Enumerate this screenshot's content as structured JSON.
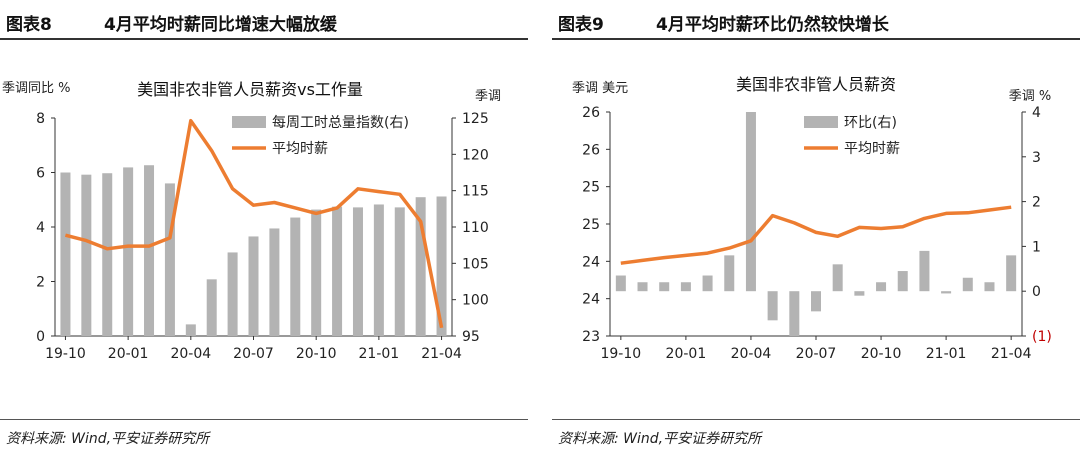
{
  "panels": [
    {
      "fig_no": "图表8",
      "fig_title": "4月平均时薪同比增速大幅放缓",
      "source": "资料来源: Wind,平安证券研究所"
    },
    {
      "fig_no": "图表9",
      "fig_title": "4月平均时薪环比仍然较快增长",
      "source": "资料来源: Wind,平安证券研究所"
    }
  ],
  "colors": {
    "bar": "#b3b3b3",
    "line": "#ed7d31",
    "negative_tick": "#c00000"
  },
  "chart_data": [
    {
      "type": "bar+line",
      "title": "美国非农非管人员薪资vs工作量",
      "ylabel_left": "季调同比 %",
      "ylabel_right": "季调",
      "x": [
        "2019-10",
        "2019-11",
        "2019-12",
        "2020-01",
        "2020-02",
        "2020-03",
        "2020-04",
        "2020-05",
        "2020-06",
        "2020-07",
        "2020-08",
        "2020-09",
        "2020-10",
        "2020-11",
        "2020-12",
        "2021-01",
        "2021-02",
        "2021-03",
        "2021-04"
      ],
      "xticks": [
        "19-10",
        "20-01",
        "20-04",
        "20-07",
        "20-10",
        "21-01",
        "21-04"
      ],
      "ylim_left": [
        0,
        8
      ],
      "yticks_left": [
        "0",
        "2",
        "4",
        "6",
        "8"
      ],
      "ylim_right": [
        95,
        125
      ],
      "yticks_right": [
        "95",
        "100",
        "105",
        "110",
        "115",
        "120",
        "125"
      ],
      "legend_position": "top-right",
      "series": [
        {
          "name": "每周工时总量指数(右)",
          "type": "bar",
          "axis": "right",
          "values": [
            117.5,
            117.2,
            117.4,
            118.2,
            118.5,
            116.0,
            96.6,
            102.8,
            106.5,
            108.7,
            109.8,
            111.3,
            112.4,
            112.8,
            112.7,
            113.1,
            112.7,
            114.1,
            114.2
          ]
        },
        {
          "name": "平均时薪",
          "type": "line",
          "axis": "left",
          "values": [
            3.7,
            3.5,
            3.2,
            3.3,
            3.3,
            3.6,
            7.9,
            6.8,
            5.4,
            4.8,
            4.9,
            4.7,
            4.5,
            4.7,
            5.4,
            5.3,
            5.2,
            4.2,
            0.3
          ]
        }
      ]
    },
    {
      "type": "bar+line",
      "title": "美国非农非管人员薪资",
      "ylabel_left": "季调 美元",
      "ylabel_right": "季调 %",
      "x": [
        "2019-10",
        "2019-11",
        "2019-12",
        "2020-01",
        "2020-02",
        "2020-03",
        "2020-04",
        "2020-05",
        "2020-06",
        "2020-07",
        "2020-08",
        "2020-09",
        "2020-10",
        "2020-11",
        "2020-12",
        "2021-01",
        "2021-02",
        "2021-03",
        "2021-04"
      ],
      "xticks": [
        "19-10",
        "20-01",
        "20-04",
        "20-07",
        "20-10",
        "21-01",
        "21-04"
      ],
      "ylim_left": [
        23,
        27
      ],
      "yticks_left": [
        "23",
        "24",
        "24",
        "25",
        "25",
        "26",
        "26"
      ],
      "ylim_right": [
        -1,
        4
      ],
      "yticks_right": [
        "(1)",
        "0",
        "1",
        "2",
        "3",
        "4"
      ],
      "legend_position": "top-center",
      "series": [
        {
          "name": "环比(右)",
          "type": "bar",
          "axis": "right",
          "values": [
            0.35,
            0.2,
            0.2,
            0.2,
            0.35,
            0.8,
            4.0,
            -0.65,
            -1.0,
            -0.45,
            0.6,
            -0.1,
            0.2,
            0.45,
            0.9,
            -0.05,
            0.3,
            0.2,
            0.8
          ]
        },
        {
          "name": "平均时薪",
          "type": "line",
          "axis": "left",
          "values": [
            24.3,
            24.35,
            24.4,
            24.44,
            24.48,
            24.57,
            24.7,
            25.15,
            25.02,
            24.85,
            24.78,
            24.94,
            24.92,
            24.95,
            25.1,
            25.19,
            25.2,
            25.25,
            25.3
          ]
        }
      ]
    }
  ]
}
